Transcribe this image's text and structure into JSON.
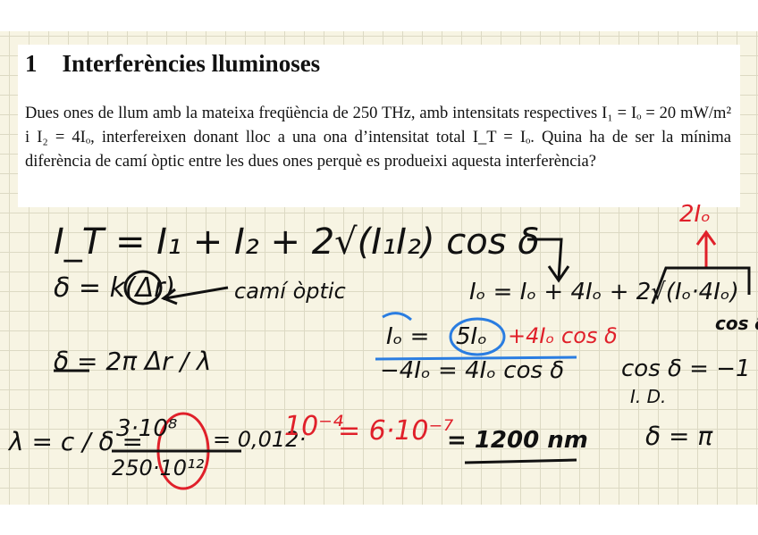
{
  "problem": {
    "number": "1",
    "title": "Interferències lluminoses",
    "statement": "Dues ones de llum amb la mateixa freqüència de 250 THz, amb intensitats respectives I₁ = Iₒ = 20 mW/m² i I₂ = 4Iₒ, interfereixen donant lloc a una ona d’intensitat total I_T = Iₒ. Quina ha de ser la mínima diferència de camí òptic entre les dues ones perquè es produeixi aquesta interferència?"
  },
  "handwriting": {
    "line1": "I_T = I₁ + I₂ + 2√(I₁I₂) cos δ",
    "line2": "δ = k(Δr)",
    "line2_note": "camí òptic",
    "line3": "δ = 2π Δr / λ",
    "eq_a": "Iₒ = Iₒ + 4Iₒ + 2√(Iₒ·4Iₒ)",
    "eq_a_cos": "cos δ",
    "eq_top_red": "2Iₒ",
    "eq_b_left": "Iₒ =",
    "eq_b_circle": "5Iₒ",
    "eq_b_red": "+4Iₒ cos δ",
    "eq_c": "−4Iₒ = 4Iₒ cos δ",
    "cos_result": "cos δ = −1",
    "id_label": "I. D.",
    "delta_result": "δ = π",
    "lambda_lhs": "λ = c / δ =",
    "lambda_num": "3·10⁸",
    "lambda_den": "250·10¹²",
    "lambda_mid": "= 0,012·",
    "lambda_pow1": "10⁻⁴",
    "lambda_eq2": "= 6·10⁻⁷",
    "lambda_final": "= 1200 nm"
  },
  "colors": {
    "ink": "#111111",
    "red": "#e0202a",
    "blue": "#2a7de1",
    "paper": "#f7f4e3",
    "grid": "#dcd9c3"
  }
}
